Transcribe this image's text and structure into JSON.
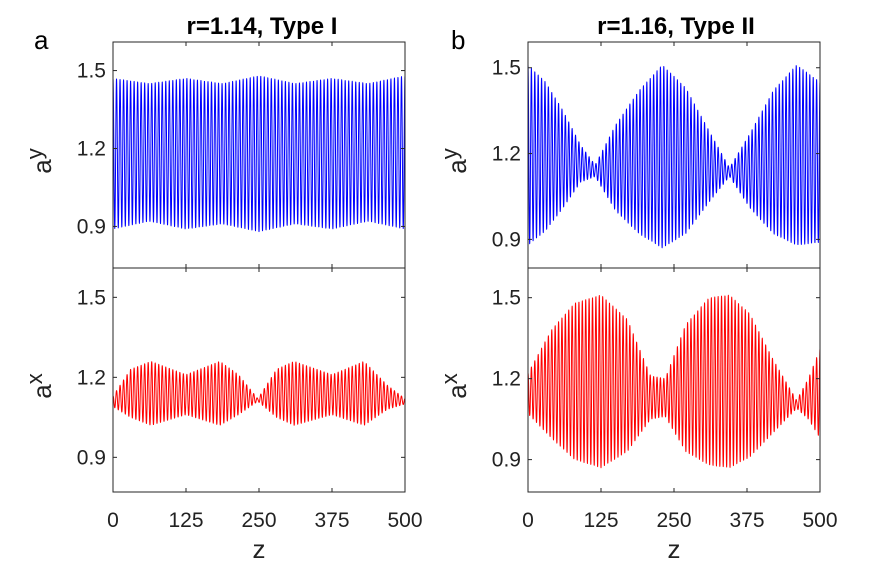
{
  "colors": {
    "blue": "#0000ff",
    "red": "#ff0000",
    "axis": "#262626"
  },
  "panel_letters": {
    "left": "a",
    "right": "b"
  },
  "chart_data": [
    {
      "type": "line",
      "column": "left",
      "title": "r=1.14, Type I",
      "series": [
        {
          "name": "a_y",
          "color": "#0000ff",
          "ylabel_main": "a",
          "ylabel_sub": "y",
          "ylim": [
            0.74,
            1.61
          ],
          "yticks": [
            0.9,
            1.2,
            1.5
          ],
          "ytick_labels": [
            "0.9",
            "1.2",
            "1.5"
          ],
          "envelope_z": [
            0,
            62,
            125,
            187,
            250,
            312,
            375,
            437,
            500
          ],
          "envelope_upper": [
            1.47,
            1.45,
            1.47,
            1.45,
            1.48,
            1.45,
            1.47,
            1.45,
            1.48
          ],
          "envelope_lower": [
            0.89,
            0.92,
            0.89,
            0.91,
            0.88,
            0.91,
            0.89,
            0.92,
            0.89
          ],
          "cycles": 83
        },
        {
          "name": "a_x",
          "color": "#ff0000",
          "ylabel_main": "a",
          "ylabel_sub": "x",
          "ylim": [
            0.77,
            1.61
          ],
          "yticks": [
            0.9,
            1.2,
            1.5
          ],
          "ytick_labels": [
            "0.9",
            "1.2",
            "1.5"
          ],
          "envelope_z": [
            0,
            30,
            65,
            125,
            183,
            215,
            248,
            280,
            310,
            375,
            430,
            470,
            500
          ],
          "envelope_upper": [
            1.13,
            1.23,
            1.26,
            1.21,
            1.26,
            1.21,
            1.12,
            1.23,
            1.26,
            1.21,
            1.26,
            1.17,
            1.12
          ],
          "envelope_lower": [
            1.09,
            1.05,
            1.02,
            1.06,
            1.02,
            1.06,
            1.11,
            1.05,
            1.02,
            1.06,
            1.02,
            1.08,
            1.1
          ],
          "cycles": 83
        }
      ],
      "xlabel": "z",
      "xlim": [
        0,
        500
      ],
      "xticks": [
        0,
        125,
        250,
        375,
        500
      ],
      "xtick_labels": [
        "0",
        "125",
        "250",
        "375",
        "500"
      ]
    },
    {
      "type": "line",
      "column": "right",
      "title": "r=1.16, Type II",
      "series": [
        {
          "name": "a_y",
          "color": "#0000ff",
          "ylabel_main": "a",
          "ylabel_sub": "y",
          "ylim": [
            0.8,
            1.59
          ],
          "yticks": [
            0.9,
            1.2,
            1.5
          ],
          "ytick_labels": [
            "0.9",
            "1.2",
            "1.5"
          ],
          "envelope_z": [
            0,
            30,
            60,
            90,
            115,
            150,
            190,
            230,
            270,
            310,
            345,
            380,
            420,
            460,
            500
          ],
          "envelope_upper": [
            1.51,
            1.45,
            1.35,
            1.23,
            1.16,
            1.3,
            1.42,
            1.51,
            1.43,
            1.28,
            1.15,
            1.27,
            1.42,
            1.51,
            1.45
          ],
          "envelope_lower": [
            0.88,
            0.93,
            1.01,
            1.1,
            1.12,
            1.0,
            0.92,
            0.87,
            0.92,
            1.03,
            1.12,
            1.01,
            0.92,
            0.88,
            0.89
          ],
          "cycles": 86
        },
        {
          "name": "a_x",
          "color": "#ff0000",
          "ylabel_main": "a",
          "ylabel_sub": "x",
          "ylim": [
            0.78,
            1.61
          ],
          "yticks": [
            0.9,
            1.2,
            1.5
          ],
          "ytick_labels": [
            "0.9",
            "1.2",
            "1.5"
          ],
          "envelope_z": [
            0,
            40,
            80,
            125,
            170,
            210,
            235,
            270,
            310,
            345,
            380,
            420,
            460,
            480,
            500
          ],
          "envelope_upper": [
            1.22,
            1.38,
            1.48,
            1.51,
            1.42,
            1.21,
            1.2,
            1.4,
            1.5,
            1.51,
            1.44,
            1.27,
            1.12,
            1.2,
            1.31
          ],
          "envelope_lower": [
            1.07,
            0.98,
            0.9,
            0.87,
            0.93,
            1.05,
            1.06,
            0.93,
            0.88,
            0.87,
            0.91,
            1.0,
            1.09,
            1.05,
            0.98
          ],
          "cycles": 86
        }
      ],
      "xlabel": "z",
      "xlim": [
        0,
        500
      ],
      "xticks": [
        0,
        125,
        250,
        375,
        500
      ],
      "xtick_labels": [
        "0",
        "125",
        "250",
        "375",
        "500"
      ]
    }
  ]
}
